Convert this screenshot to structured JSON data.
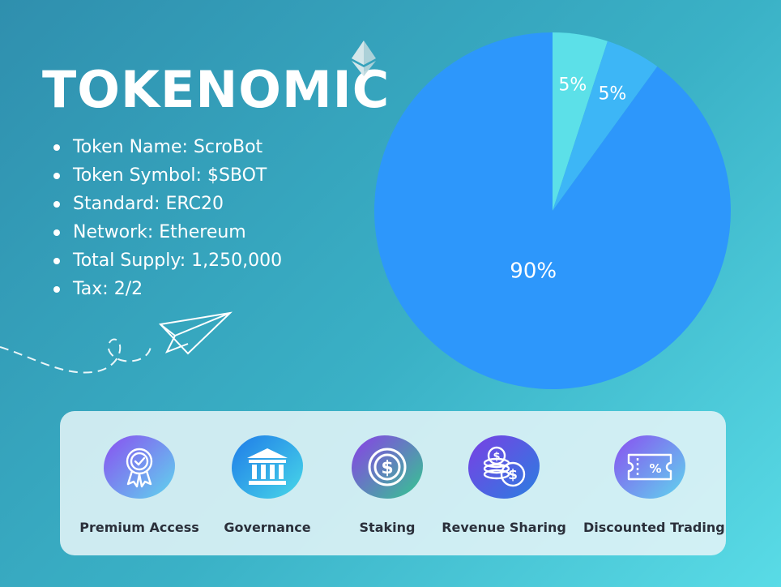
{
  "title": "TOKENOMIC",
  "token_info": [
    "Token Name: ScroBot",
    "Token Symbol: $SBOT",
    "Standard: ERC20",
    "Network: Ethereum",
    "Total Supply: 1,250,000",
    "Tax: 2/2"
  ],
  "chart_data": {
    "type": "pie",
    "values": [
      5,
      5,
      90
    ],
    "labels": [
      "5%",
      "5%",
      "90%"
    ],
    "colors": [
      "#5ce0e8",
      "#3db6f6",
      "#2d97fb"
    ]
  },
  "features": [
    {
      "label": "Premium Access",
      "icon": "award-ribbon-icon"
    },
    {
      "label": "Governance",
      "icon": "bank-building-icon"
    },
    {
      "label": "Staking",
      "icon": "dollar-coin-icon"
    },
    {
      "label": "Revenue Sharing",
      "icon": "coin-stack-icon"
    },
    {
      "label": "Discounted Trading",
      "icon": "discount-ticket-icon"
    }
  ],
  "colors": {
    "background_start": "#2f8fae",
    "background_end": "#59dbe6",
    "panel": "#e3f4f7",
    "feature_text": "#2a2f3a"
  }
}
